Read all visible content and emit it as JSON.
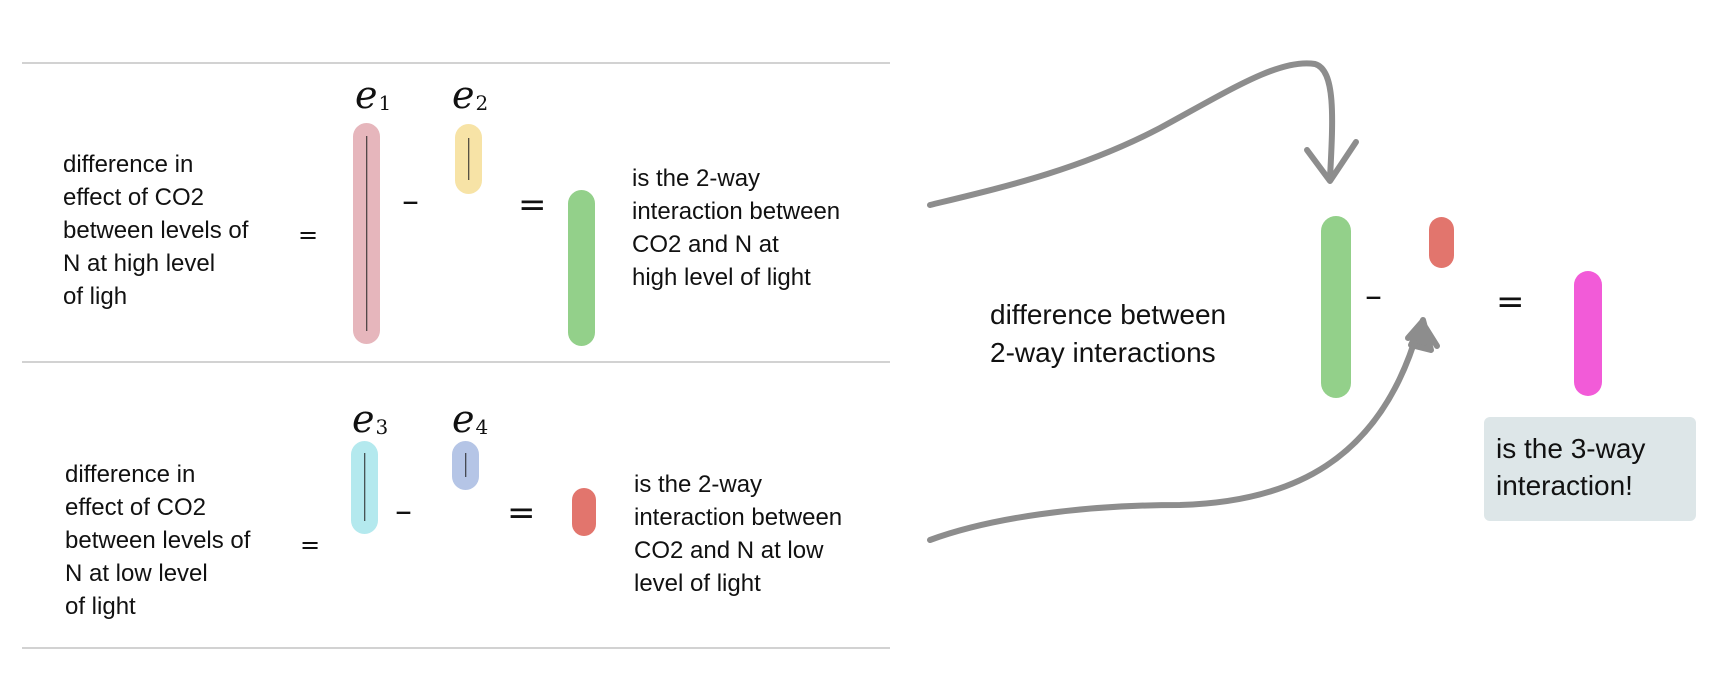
{
  "rows": [
    {
      "description": "difference in\neffect of CO2\nbetween levels of\nN at high level\nof ligh",
      "eq1": "=",
      "label_a": {
        "letter": "e",
        "sub": "1"
      },
      "minus": "–",
      "label_b": {
        "letter": "e",
        "sub": "2"
      },
      "eq2": "=",
      "result": "is the 2-way\ninteraction between\nCO2 and N at\nhigh level of light",
      "colors": {
        "bar_a": "#e6b6bc",
        "bar_b": "#f7e3a6",
        "bar_result": "#93d08a"
      }
    },
    {
      "description": "difference in\neffect of CO2\nbetween levels of\nN at low level\nof light",
      "eq1": "=",
      "label_a": {
        "letter": "e",
        "sub": "3"
      },
      "minus": "–",
      "label_b": {
        "letter": "e",
        "sub": "4"
      },
      "eq2": "=",
      "result": "is the 2-way\ninteraction between\nCO2 and N at low\n level of light",
      "colors": {
        "bar_a": "#b4e9ee",
        "bar_b": "#b5c5e6",
        "bar_result": "#e2756d"
      }
    }
  ],
  "right": {
    "label": "difference between\n2-way interactions",
    "minus": "–",
    "equals": "=",
    "callout": "is the 3-way\ninteraction!",
    "colors": {
      "bar_green": "#93d08a",
      "bar_red": "#e2756d",
      "bar_magenta": "#f25bd8",
      "callout_bg": "#dde6e8",
      "arrow": "#8d8d8d",
      "rule": "#d2d2d2"
    }
  }
}
